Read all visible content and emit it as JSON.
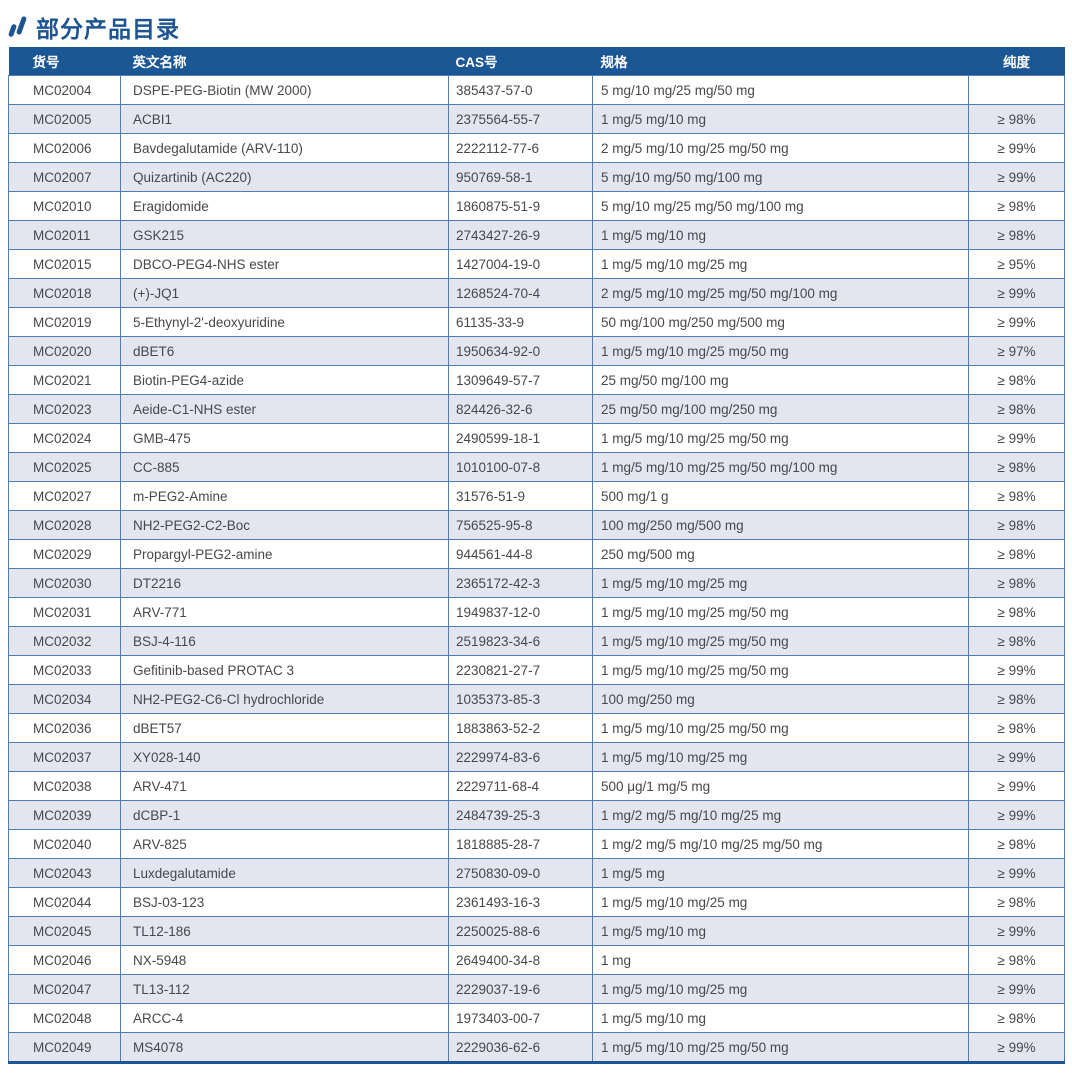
{
  "page": {
    "title": "部分产品目录"
  },
  "colors": {
    "primary": "#1d5593",
    "header_bg": "#1c5795",
    "row_alt_bg": "#e3e6f0",
    "border": "#517db3",
    "text": "#48484c"
  },
  "icons": {
    "section_marker": "double-slash-icon"
  },
  "table": {
    "columns": [
      {
        "key": "item_no",
        "label": "货号"
      },
      {
        "key": "name",
        "label": "英文名称"
      },
      {
        "key": "cas",
        "label": "CAS号"
      },
      {
        "key": "spec",
        "label": "规格"
      },
      {
        "key": "purity",
        "label": "纯度"
      }
    ],
    "rows": [
      [
        "MC02004",
        "DSPE-PEG-Biotin (MW 2000)",
        "385437-57-0",
        "5 mg/10 mg/25 mg/50 mg",
        ""
      ],
      [
        "MC02005",
        "ACBI1",
        "2375564-55-7",
        "1 mg/5 mg/10 mg",
        "≥ 98%"
      ],
      [
        "MC02006",
        "Bavdegalutamide (ARV-110)",
        "2222112-77-6",
        "2 mg/5 mg/10 mg/25 mg/50 mg",
        "≥ 99%"
      ],
      [
        "MC02007",
        "Quizartinib (AC220)",
        "950769-58-1",
        "5 mg/10 mg/50 mg/100 mg",
        "≥ 99%"
      ],
      [
        "MC02010",
        "Eragidomide",
        "1860875-51-9",
        "5 mg/10 mg/25 mg/50 mg/100 mg",
        "≥ 98%"
      ],
      [
        "MC02011",
        "GSK215",
        "2743427-26-9",
        "1 mg/5 mg/10 mg",
        "≥ 98%"
      ],
      [
        "MC02015",
        "DBCO-PEG4-NHS ester",
        "1427004-19-0",
        "1 mg/5 mg/10 mg/25 mg",
        "≥ 95%"
      ],
      [
        "MC02018",
        "(+)-JQ1",
        "1268524-70-4",
        "2 mg/5 mg/10 mg/25 mg/50 mg/100 mg",
        "≥ 99%"
      ],
      [
        "MC02019",
        "5-Ethynyl-2'-deoxyuridine",
        "61135-33-9",
        "50 mg/100 mg/250 mg/500 mg",
        "≥ 99%"
      ],
      [
        "MC02020",
        "dBET6",
        "1950634-92-0",
        "1 mg/5 mg/10 mg/25 mg/50 mg",
        "≥ 97%"
      ],
      [
        "MC02021",
        "Biotin-PEG4-azide",
        "1309649-57-7",
        "25 mg/50 mg/100 mg",
        "≥ 98%"
      ],
      [
        "MC02023",
        "Aeide-C1-NHS ester",
        "824426-32-6",
        "25 mg/50 mg/100 mg/250 mg",
        "≥ 98%"
      ],
      [
        "MC02024",
        "GMB-475",
        "2490599-18-1",
        "1 mg/5 mg/10 mg/25 mg/50 mg",
        "≥ 99%"
      ],
      [
        "MC02025",
        "CC-885",
        "1010100-07-8",
        "1 mg/5 mg/10 mg/25 mg/50 mg/100 mg",
        "≥ 98%"
      ],
      [
        "MC02027",
        "m-PEG2-Amine",
        "31576-51-9",
        "500 mg/1 g",
        "≥ 98%"
      ],
      [
        "MC02028",
        "NH2-PEG2-C2-Boc",
        "756525-95-8",
        "100 mg/250 mg/500 mg",
        "≥ 98%"
      ],
      [
        "MC02029",
        "Propargyl-PEG2-amine",
        "944561-44-8",
        "250 mg/500 mg",
        "≥ 98%"
      ],
      [
        "MC02030",
        "DT2216",
        "2365172-42-3",
        "1 mg/5 mg/10 mg/25 mg",
        "≥ 98%"
      ],
      [
        "MC02031",
        "ARV-771",
        "1949837-12-0",
        "1 mg/5 mg/10 mg/25 mg/50 mg",
        "≥ 98%"
      ],
      [
        "MC02032",
        "BSJ-4-116",
        "2519823-34-6",
        "1 mg/5 mg/10 mg/25 mg/50 mg",
        "≥ 98%"
      ],
      [
        "MC02033",
        "Gefitinib-based PROTAC 3",
        "2230821-27-7",
        "1 mg/5 mg/10 mg/25 mg/50 mg",
        "≥ 99%"
      ],
      [
        "MC02034",
        "NH2-PEG2-C6-Cl hydrochloride",
        "1035373-85-3",
        "100 mg/250 mg",
        "≥ 98%"
      ],
      [
        "MC02036",
        "dBET57",
        "1883863-52-2",
        "1 mg/5 mg/10 mg/25 mg/50 mg",
        "≥ 98%"
      ],
      [
        "MC02037",
        "XY028-140",
        "2229974-83-6",
        "1 mg/5 mg/10 mg/25 mg",
        "≥ 99%"
      ],
      [
        "MC02038",
        "ARV-471",
        "2229711-68-4",
        "500 μg/1 mg/5 mg",
        "≥ 99%"
      ],
      [
        "MC02039",
        "dCBP-1",
        "2484739-25-3",
        "1 mg/2 mg/5 mg/10 mg/25 mg",
        "≥ 99%"
      ],
      [
        "MC02040",
        "ARV-825",
        "1818885-28-7",
        "1 mg/2 mg/5 mg/10 mg/25 mg/50 mg",
        "≥ 98%"
      ],
      [
        "MC02043",
        "Luxdegalutamide",
        "2750830-09-0",
        "1 mg/5 mg",
        "≥ 99%"
      ],
      [
        "MC02044",
        "BSJ-03-123",
        "2361493-16-3",
        "1 mg/5 mg/10 mg/25 mg",
        "≥ 98%"
      ],
      [
        "MC02045",
        "TL12-186",
        "2250025-88-6",
        "1 mg/5 mg/10 mg",
        "≥ 99%"
      ],
      [
        "MC02046",
        "NX-5948",
        "2649400-34-8",
        "1 mg",
        "≥ 98%"
      ],
      [
        "MC02047",
        "TL13-112",
        "2229037-19-6",
        "1 mg/5 mg/10 mg/25 mg",
        "≥ 99%"
      ],
      [
        "MC02048",
        "ARCC-4",
        "1973403-00-7",
        "1 mg/5 mg/10 mg",
        "≥ 98%"
      ],
      [
        "MC02049",
        "MS4078",
        "2229036-62-6",
        "1 mg/5 mg/10 mg/25 mg/50 mg",
        "≥ 99%"
      ]
    ]
  }
}
